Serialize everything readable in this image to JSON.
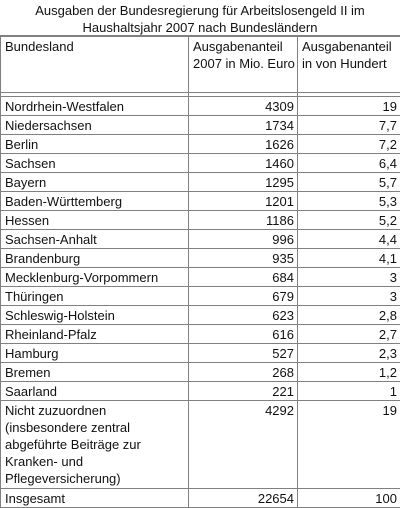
{
  "title": "Ausgaben der Bundesregierung für Arbeitslosengeld II im Haushaltsjahr 2007 nach Bundesländern",
  "headers": {
    "col1": "Bundesland",
    "col2": "Ausgabenanteil 2007 in Mio. Euro",
    "col3": "Ausgabenanteil in von Hundert"
  },
  "rows": [
    {
      "land": "Nordrhein-Westfalen",
      "mio": "4309",
      "pct": "19"
    },
    {
      "land": "Niedersachsen",
      "mio": "1734",
      "pct": "7,7"
    },
    {
      "land": "Berlin",
      "mio": "1626",
      "pct": "7,2"
    },
    {
      "land": "Sachsen",
      "mio": "1460",
      "pct": "6,4"
    },
    {
      "land": "Bayern",
      "mio": "1295",
      "pct": "5,7"
    },
    {
      "land": "Baden-Württemberg",
      "mio": "1201",
      "pct": "5,3"
    },
    {
      "land": "Hessen",
      "mio": "1186",
      "pct": "5,2"
    },
    {
      "land": "Sachsen-Anhalt",
      "mio": "996",
      "pct": "4,4"
    },
    {
      "land": "Brandenburg",
      "mio": "935",
      "pct": "4,1"
    },
    {
      "land": "Mecklenburg-Vorpommern",
      "mio": "684",
      "pct": "3"
    },
    {
      "land": "Thüringen",
      "mio": "679",
      "pct": "3"
    },
    {
      "land": "Schleswig-Holstein",
      "mio": "623",
      "pct": "2,8"
    },
    {
      "land": "Rheinland-Pfalz",
      "mio": "616",
      "pct": "2,7"
    },
    {
      "land": "Hamburg",
      "mio": "527",
      "pct": "2,3"
    },
    {
      "land": "Bremen",
      "mio": "268",
      "pct": "1,2"
    },
    {
      "land": "Saarland",
      "mio": "221",
      "pct": "1"
    }
  ],
  "unassigned": {
    "label": "Nicht zuzuordnen (insbesondere zentral abgeführte Beiträge zur Kranken- und Pflegeversicherung)",
    "mio": "4292",
    "pct": "19"
  },
  "total": {
    "label": "Insgesamt",
    "mio": "22654",
    "pct": "100"
  }
}
